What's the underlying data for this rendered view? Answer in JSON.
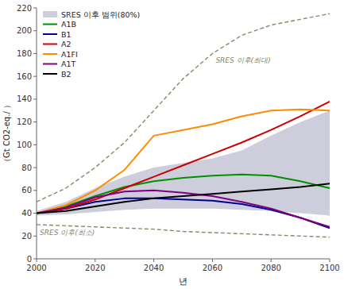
{
  "chart_data": {
    "type": "line",
    "xlabel": "년",
    "ylabel": "（Gt CO2-eq./  ）",
    "x": [
      2000,
      2010,
      2020,
      2030,
      2040,
      2050,
      2060,
      2070,
      2080,
      2090,
      2100
    ],
    "series": [
      {
        "name": "SRES 이후 범위(80%)",
        "type": "area",
        "color": "#b8b8cc",
        "upper": [
          42,
          50,
          62,
          72,
          80,
          84,
          88,
          95,
          108,
          120,
          130
        ],
        "lower": [
          38,
          39,
          41,
          43,
          44,
          44,
          44,
          43,
          42,
          40,
          38
        ]
      },
      {
        "name": "A1B",
        "color": "#009000",
        "values": [
          40,
          46,
          55,
          63,
          68,
          71,
          73,
          74,
          73,
          68,
          62
        ]
      },
      {
        "name": "B1",
        "color": "#000090",
        "values": [
          40,
          44,
          50,
          53,
          53,
          52,
          51,
          48,
          43,
          36,
          27
        ]
      },
      {
        "name": "A2",
        "color": "#cc0000",
        "values": [
          40,
          44,
          52,
          62,
          72,
          82,
          92,
          102,
          113,
          125,
          138
        ]
      },
      {
        "name": "A1FI",
        "color": "#ff8c00",
        "values": [
          40,
          47,
          60,
          78,
          108,
          113,
          118,
          125,
          130,
          131,
          130
        ]
      },
      {
        "name": "A1T",
        "color": "#800080",
        "values": [
          40,
          45,
          54,
          59,
          60,
          58,
          55,
          50,
          44,
          36,
          28
        ]
      },
      {
        "name": "B2",
        "color": "#000000",
        "values": [
          40,
          42,
          46,
          50,
          53,
          55,
          57,
          59,
          61,
          63,
          66
        ]
      },
      {
        "annotation": "SRES 이후(최대)",
        "color": "#888868",
        "line_style": "dashed",
        "values": [
          50,
          62,
          80,
          102,
          130,
          158,
          180,
          196,
          205,
          210,
          215
        ]
      },
      {
        "annotation": "SRES 이후(최소)",
        "color": "#888868",
        "line_style": "dashed",
        "values": [
          30,
          29,
          28,
          27,
          26,
          24,
          23,
          22,
          21,
          20,
          19
        ]
      }
    ],
    "xlim": [
      2000,
      2100
    ],
    "xticks": [
      2000,
      2020,
      2040,
      2060,
      2080,
      2100
    ],
    "ylim": [
      0,
      220
    ],
    "yticks": [
      0,
      20,
      40,
      60,
      80,
      100,
      120,
      140,
      160,
      180,
      200,
      220
    ],
    "grid": false,
    "legend": "upper left"
  }
}
